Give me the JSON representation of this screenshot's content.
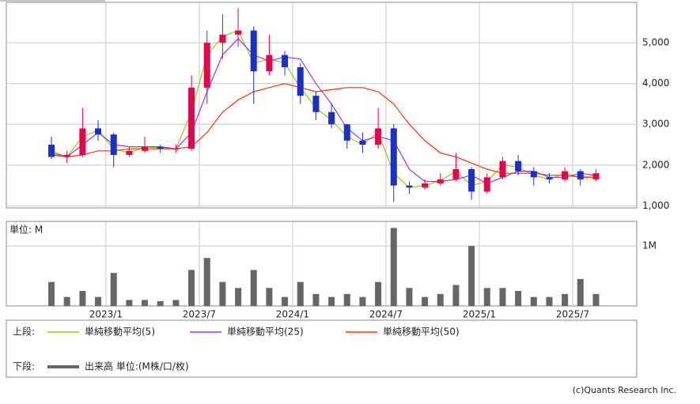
{
  "chart_data": [
    {
      "type": "candlestick",
      "categories": [
        null,
        null,
        null,
        null,
        "2023/1",
        null,
        null,
        null,
        null,
        null,
        "2023/7",
        null,
        null,
        null,
        null,
        null,
        "2024/1",
        null,
        null,
        null,
        null,
        null,
        "2024/7",
        null,
        null,
        null,
        null,
        null,
        "2025/1",
        null,
        null,
        null,
        null,
        null,
        "2025/7",
        null
      ],
      "open": [
        2500,
        2200,
        2250,
        2900,
        2750,
        2250,
        2350,
        2450,
        2400,
        2400,
        3900,
        5000,
        5200,
        5300,
        4300,
        4700,
        4400,
        3700,
        3300,
        3000,
        2600,
        2500,
        2900,
        1500,
        1450,
        1550,
        1650,
        1900,
        1350,
        1700,
        2100,
        1850,
        1700,
        1650,
        1850,
        1650
      ],
      "high": [
        2700,
        2350,
        3400,
        3100,
        2800,
        2450,
        2700,
        2500,
        2500,
        4200,
        5300,
        5700,
        5850,
        5400,
        5200,
        4800,
        4500,
        3800,
        3500,
        3000,
        2800,
        3400,
        3000,
        1600,
        1650,
        1800,
        2300,
        1950,
        1800,
        2200,
        2250,
        1950,
        1800,
        1950,
        1900,
        1900
      ],
      "low": [
        2150,
        2050,
        2200,
        2600,
        1950,
        2200,
        2300,
        2300,
        2300,
        2350,
        3500,
        4600,
        4900,
        3500,
        4200,
        4200,
        3500,
        3100,
        2900,
        2400,
        2300,
        2400,
        1100,
        1300,
        1400,
        1500,
        1600,
        1150,
        1300,
        1650,
        1750,
        1500,
        1550,
        1600,
        1500,
        1600
      ],
      "close": [
        2200,
        2250,
        2900,
        2750,
        2250,
        2350,
        2450,
        2400,
        2400,
        3900,
        5000,
        5200,
        5300,
        4300,
        4700,
        4400,
        3700,
        3300,
        3000,
        2600,
        2500,
        2900,
        1500,
        1450,
        1550,
        1650,
        1900,
        1350,
        1700,
        2100,
        1850,
        1700,
        1650,
        1850,
        1650,
        1800
      ],
      "up_color": "#e8004c",
      "down_color": "#1a2fcc",
      "series": [
        {
          "name": "単純移動平均(5)",
          "color": "#99cc00",
          "values": [
            2350,
            2200,
            2700,
            2850,
            2400,
            2300,
            2450,
            2420,
            2400,
            3300,
            4700,
            5150,
            5300,
            4500,
            4600,
            4500,
            3900,
            3400,
            3100,
            2700,
            2500,
            2800,
            1800,
            1450,
            1500,
            1620,
            1850,
            1500,
            1600,
            2000,
            1950,
            1750,
            1650,
            1800,
            1700,
            1750
          ]
        },
        {
          "name": "単純移動平均(25)",
          "color": "#9933ff",
          "values": [
            2250,
            2200,
            2500,
            2800,
            2500,
            2450,
            2450,
            2450,
            2400,
            2800,
            3800,
            4700,
            5100,
            4700,
            4550,
            4650,
            4600,
            4000,
            3500,
            2900,
            2600,
            2700,
            2600,
            1900,
            1600,
            1600,
            1650,
            1750,
            1550,
            1700,
            1850,
            1850,
            1700,
            1700,
            1800,
            1750
          ]
        },
        {
          "name": "単純移動平均(50)",
          "color": "#ff3300",
          "values": [
            2300,
            2200,
            2250,
            2350,
            2350,
            2400,
            2400,
            2400,
            2400,
            2450,
            2800,
            3300,
            3600,
            3800,
            3900,
            4000,
            3900,
            3800,
            3850,
            3900,
            3900,
            3800,
            3500,
            3000,
            2600,
            2300,
            2200,
            2050,
            1900,
            1800,
            1800,
            1800,
            1750,
            1750,
            1700,
            1700
          ]
        }
      ],
      "ylim": [
        950,
        5990
      ],
      "yticks": [
        {
          "value": 1000,
          "label": "1,000"
        },
        {
          "value": 2000,
          "label": "2,000"
        },
        {
          "value": 3000,
          "label": "3,000"
        },
        {
          "value": 4000,
          "label": "4,000"
        },
        {
          "value": 5000,
          "label": "5,000"
        }
      ],
      "grid": true
    },
    {
      "type": "bar",
      "unit_label": "単位: M",
      "categories": [
        null,
        null,
        null,
        null,
        "2023/1",
        null,
        null,
        null,
        null,
        null,
        "2023/7",
        null,
        null,
        null,
        null,
        null,
        "2024/1",
        null,
        null,
        null,
        null,
        null,
        "2024/7",
        null,
        null,
        null,
        null,
        null,
        "2025/1",
        null,
        null,
        null,
        null,
        null,
        "2025/7",
        null
      ],
      "series": [
        {
          "name": "出来高 単位:(M株/口/枚)",
          "color": "#666666",
          "values": [
            0.4,
            0.15,
            0.25,
            0.15,
            0.55,
            0.1,
            0.1,
            0.08,
            0.1,
            0.6,
            0.8,
            0.4,
            0.3,
            0.6,
            0.3,
            0.15,
            0.4,
            0.2,
            0.15,
            0.2,
            0.15,
            0.4,
            1.3,
            0.3,
            0.15,
            0.2,
            0.35,
            1.0,
            0.3,
            0.3,
            0.25,
            0.15,
            0.15,
            0.2,
            0.45,
            0.2
          ]
        }
      ],
      "ylim": [
        0,
        1.41
      ],
      "yticks": [
        {
          "value": 1,
          "label": "1M"
        }
      ],
      "grid": true
    }
  ],
  "legend": {
    "upper": "上段:",
    "lower": "下段:"
  },
  "credit": "(c)Quants Research Inc."
}
